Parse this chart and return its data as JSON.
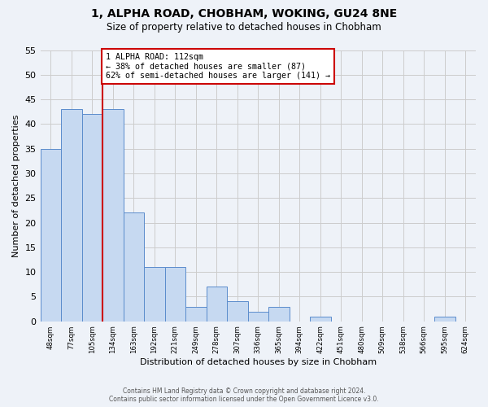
{
  "title": "1, ALPHA ROAD, CHOBHAM, WOKING, GU24 8NE",
  "subtitle": "Size of property relative to detached houses in Chobham",
  "xlabel": "Distribution of detached houses by size in Chobham",
  "ylabel": "Number of detached properties",
  "bin_labels": [
    "48sqm",
    "77sqm",
    "105sqm",
    "134sqm",
    "163sqm",
    "192sqm",
    "221sqm",
    "249sqm",
    "278sqm",
    "307sqm",
    "336sqm",
    "365sqm",
    "394sqm",
    "422sqm",
    "451sqm",
    "480sqm",
    "509sqm",
    "538sqm",
    "566sqm",
    "595sqm",
    "624sqm"
  ],
  "counts": [
    35,
    43,
    42,
    43,
    22,
    11,
    11,
    3,
    7,
    4,
    2,
    3,
    0,
    1,
    0,
    0,
    0,
    0,
    0,
    1,
    0
  ],
  "bar_color": "#c6d9f1",
  "bar_edge_color": "#5b8ccc",
  "grid_color": "#cccccc",
  "property_line_bin": 2.5,
  "property_line_color": "#cc0000",
  "annotation_text": "1 ALPHA ROAD: 112sqm\n← 38% of detached houses are smaller (87)\n62% of semi-detached houses are larger (141) →",
  "annotation_box_color": "#ffffff",
  "annotation_box_edge": "#cc0000",
  "ylim": [
    0,
    55
  ],
  "yticks": [
    0,
    5,
    10,
    15,
    20,
    25,
    30,
    35,
    40,
    45,
    50,
    55
  ],
  "footer_line1": "Contains HM Land Registry data © Crown copyright and database right 2024.",
  "footer_line2": "Contains public sector information licensed under the Open Government Licence v3.0.",
  "background_color": "#eef2f8"
}
